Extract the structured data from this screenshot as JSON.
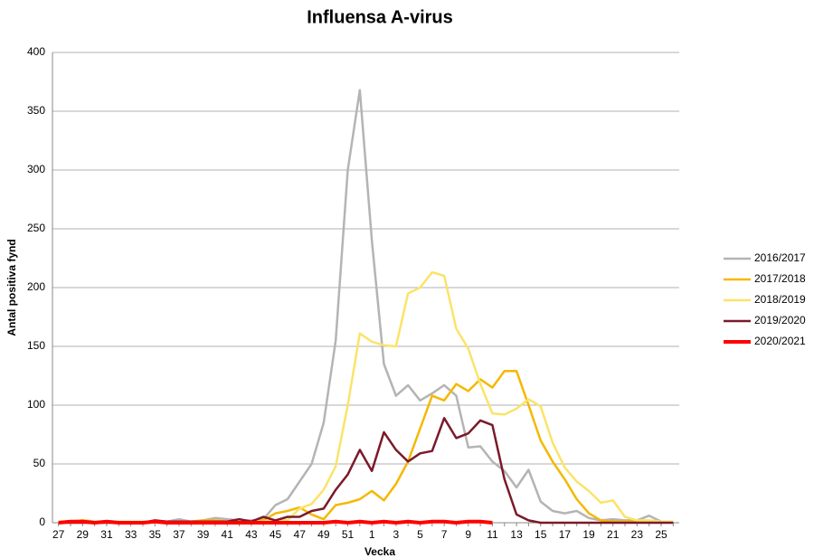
{
  "chart_data": {
    "type": "line",
    "title": "Influensa A-virus",
    "x_label": "Vecka",
    "y_label": "Antal positiva fynd",
    "categories": [
      "27",
      null,
      "29",
      null,
      "31",
      null,
      "33",
      null,
      "35",
      null,
      "37",
      null,
      "39",
      null,
      "41",
      null,
      "43",
      null,
      "45",
      null,
      "47",
      null,
      "49",
      null,
      "51",
      null,
      "1",
      null,
      "3",
      null,
      "5",
      null,
      "7",
      null,
      "9",
      null,
      "11",
      null,
      "13",
      null,
      "15",
      null,
      "17",
      null,
      "19",
      null,
      "21",
      null,
      "23",
      null,
      "25",
      null
    ],
    "series": [
      {
        "name": "2016/2017",
        "color": "#b4b4b4",
        "values": [
          1,
          1,
          2,
          1,
          1,
          1,
          1,
          0,
          1,
          1,
          3,
          1,
          2,
          4,
          3,
          2,
          2,
          3,
          15,
          20,
          35,
          50,
          85,
          155,
          300,
          368,
          240,
          135,
          108,
          117,
          104,
          110,
          117,
          108,
          64,
          65,
          52,
          44,
          30,
          45,
          18,
          10,
          8,
          10,
          4,
          2,
          3,
          2,
          2,
          6,
          1,
          1
        ]
      },
      {
        "name": "2017/2018",
        "color": "#f5b800",
        "values": [
          1,
          1,
          2,
          1,
          1,
          1,
          1,
          1,
          1,
          1,
          1,
          1,
          2,
          2,
          1,
          1,
          1,
          2,
          8,
          10,
          13,
          7,
          3,
          15,
          17,
          20,
          27,
          19,
          33,
          52,
          80,
          108,
          104,
          118,
          112,
          122,
          115,
          129,
          129,
          100,
          70,
          52,
          37,
          20,
          8,
          2,
          1,
          1,
          1,
          1,
          1,
          1
        ]
      },
      {
        "name": "2018/2019",
        "color": "#fbe36a",
        "values": [
          1,
          1,
          1,
          1,
          1,
          1,
          1,
          1,
          1,
          1,
          1,
          1,
          1,
          1,
          1,
          1,
          1,
          1,
          2,
          2,
          12,
          16,
          28,
          48,
          100,
          161,
          154,
          151,
          150,
          195,
          200,
          213,
          210,
          165,
          148,
          118,
          93,
          92,
          97,
          105,
          99,
          68,
          47,
          35,
          27,
          17,
          19,
          5,
          2,
          2,
          1,
          1
        ]
      },
      {
        "name": "2019/2020",
        "color": "#7a1a2a",
        "values": [
          0,
          0,
          0,
          0,
          0,
          0,
          0,
          0,
          2,
          1,
          1,
          1,
          1,
          1,
          1,
          3,
          1,
          5,
          2,
          5,
          5,
          10,
          12,
          28,
          41,
          62,
          44,
          77,
          62,
          52,
          59,
          61,
          89,
          72,
          76,
          87,
          83,
          37,
          7,
          2,
          0,
          0,
          0,
          0,
          0,
          0,
          0,
          0,
          0,
          0,
          0,
          0
        ]
      },
      {
        "name": "2020/2021",
        "color": "#ff0000",
        "values": [
          0,
          1,
          1,
          0,
          1,
          0,
          0,
          0,
          1,
          0,
          0,
          0,
          0,
          0,
          0,
          0,
          0,
          0,
          0,
          0,
          0,
          0,
          0,
          1,
          0,
          1,
          0,
          1,
          0,
          1,
          0,
          1,
          1,
          0,
          1,
          1,
          0,
          null,
          null,
          null,
          null,
          null,
          null,
          null,
          null,
          null,
          null,
          null,
          null,
          null,
          null,
          null
        ]
      }
    ],
    "ylim": [
      0,
      400
    ],
    "yticks": [
      0,
      50,
      100,
      150,
      200,
      250,
      300,
      350,
      400
    ],
    "grid": true,
    "legend": "right"
  }
}
